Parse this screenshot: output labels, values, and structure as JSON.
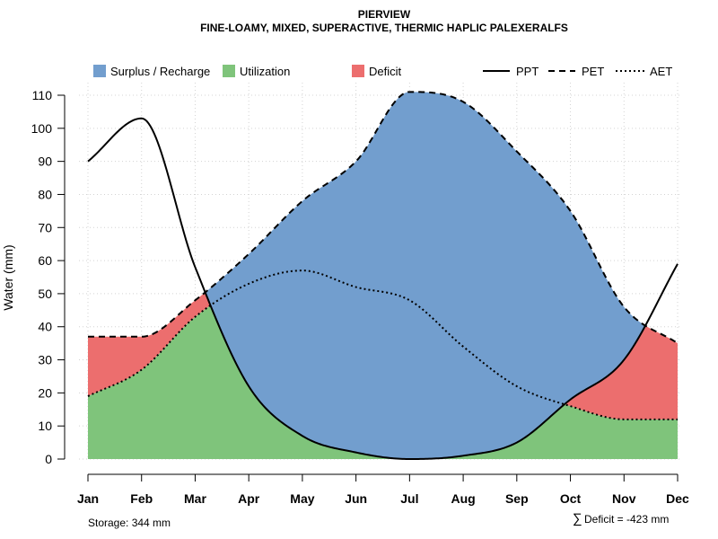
{
  "chart_data": {
    "type": "area",
    "title": "PIERVIEW",
    "subtitle": "FINE-LOAMY, MIXED, SUPERACTIVE, THERMIC HAPLIC PALEXERALFS",
    "ylabel": "Water (mm)",
    "xlabel": "",
    "ylim": [
      0,
      110
    ],
    "yticks": [
      0,
      10,
      20,
      30,
      40,
      50,
      60,
      70,
      80,
      90,
      100,
      110
    ],
    "categories": [
      "Jan",
      "Feb",
      "Mar",
      "Apr",
      "May",
      "Jun",
      "Jul",
      "Aug",
      "Sep",
      "Oct",
      "Nov",
      "Dec"
    ],
    "grid": true,
    "legend_position": "top",
    "series": [
      {
        "name": "PPT",
        "line": "solid",
        "values": [
          90,
          103,
          58,
          22,
          7,
          2,
          0,
          1,
          5,
          18,
          30,
          59
        ]
      },
      {
        "name": "PET",
        "line": "dashed",
        "values": [
          37,
          37,
          48,
          62,
          78,
          90,
          111,
          108,
          93,
          75,
          46,
          35
        ]
      },
      {
        "name": "AET",
        "line": "dotted",
        "values": [
          19,
          27,
          43,
          53,
          57,
          52,
          48,
          34,
          22,
          16,
          12,
          12
        ]
      }
    ],
    "area_legend": [
      {
        "name": "Surplus / Recharge",
        "color": "#729ECE"
      },
      {
        "name": "Utilization",
        "color": "#7FC47B"
      },
      {
        "name": "Deficit",
        "color": "#EC6E6E"
      }
    ],
    "line_legend": [
      "PPT",
      "PET",
      "AET"
    ],
    "annotations": {
      "storage": "Storage: 344 mm",
      "deficit": "Deficit = -423 mm",
      "deficit_symbol": "∑"
    }
  }
}
